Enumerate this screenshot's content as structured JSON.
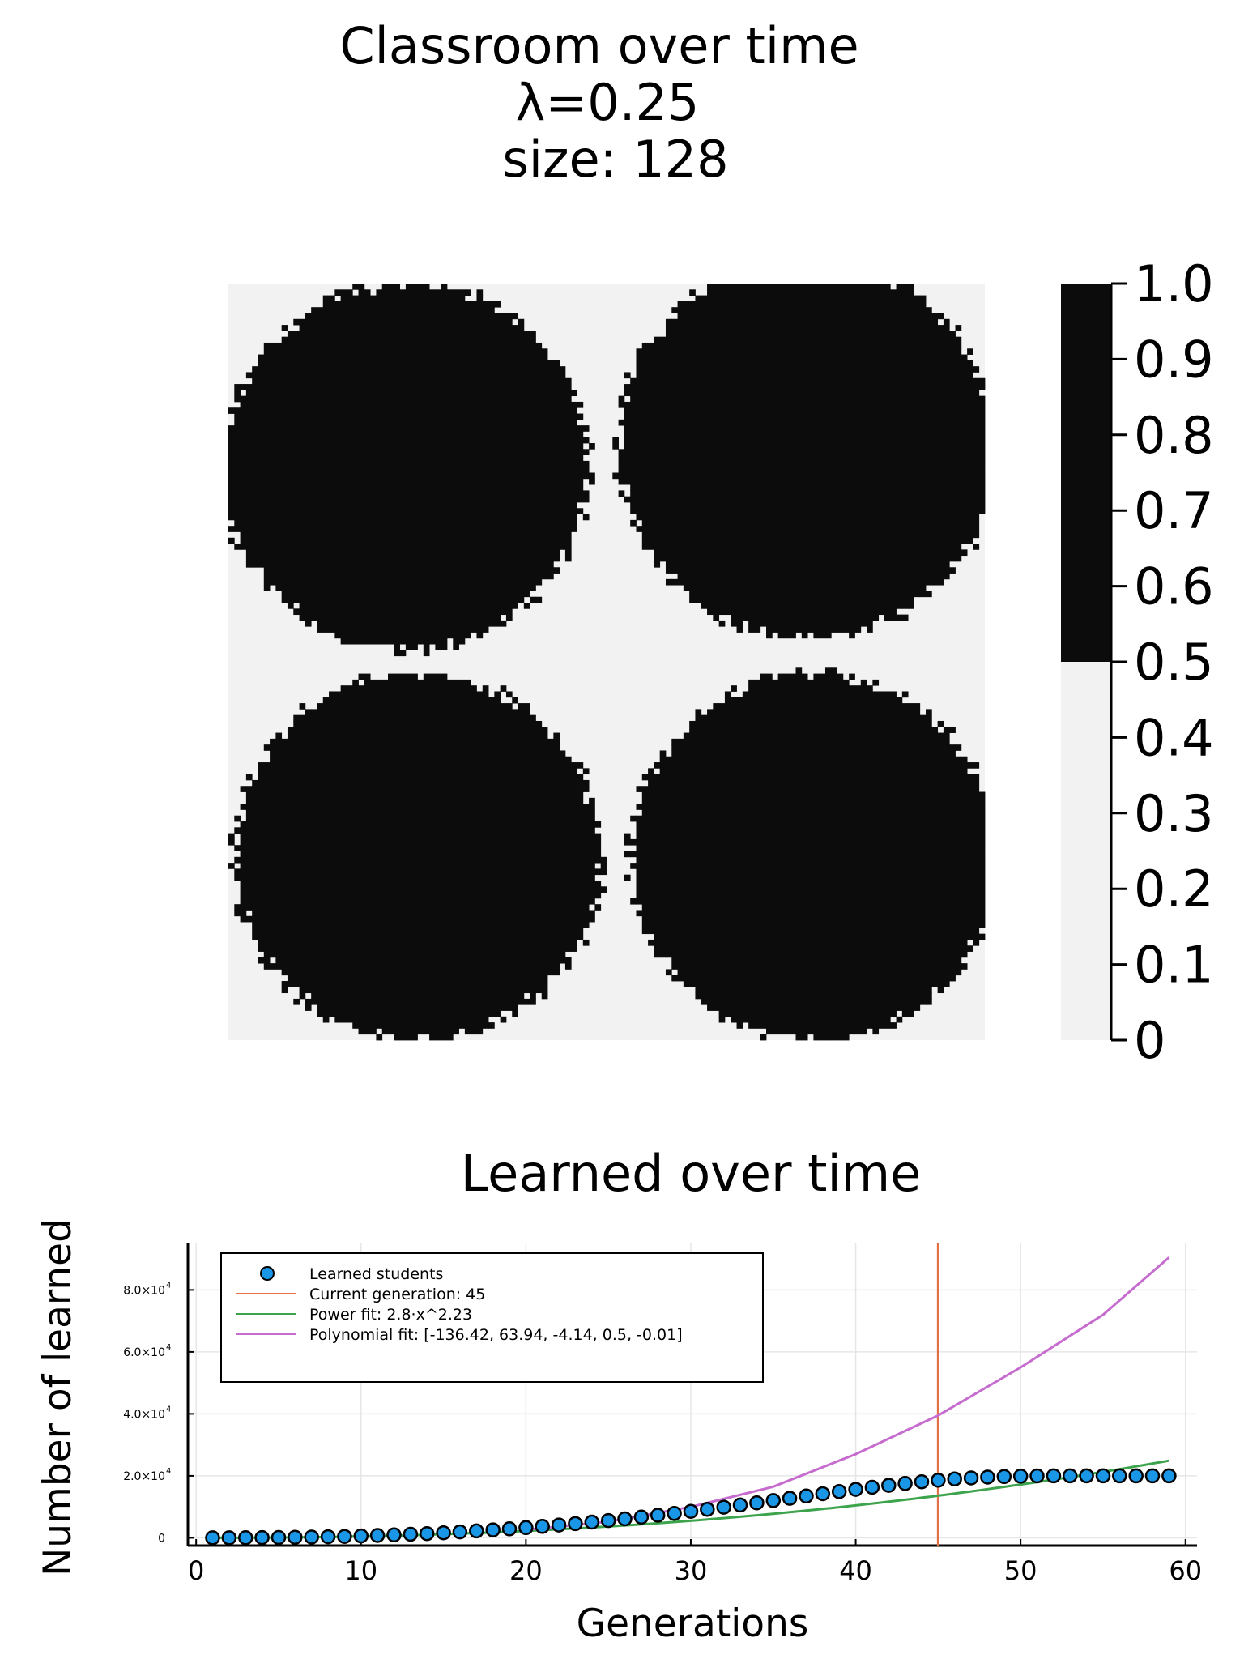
{
  "chart_data": [
    {
      "type": "heatmap",
      "title": "Classroom over time",
      "subtitle_lines": [
        "λ=0.25",
        "size: 128"
      ],
      "grid_size": 128,
      "threshold": 0.25,
      "colorbar": {
        "ticks": [
          "1.0",
          "0.9",
          "0.8",
          "0.7",
          "0.6",
          "0.5",
          "0.4",
          "0.3",
          "0.2",
          "0.1",
          "0"
        ],
        "range": [
          0,
          1
        ],
        "split_value": 0.5,
        "low_color": "#f2f2f2",
        "high_color": "#0c0c0c"
      },
      "blobs": [
        {
          "name": "top-left",
          "cx": 30,
          "cy": 31,
          "r": 31
        },
        {
          "name": "top-right",
          "cx": 98,
          "cy": 28,
          "r": 32
        },
        {
          "name": "bottom-left",
          "cx": 32,
          "cy": 97,
          "r": 31
        },
        {
          "name": "bottom-right",
          "cx": 99,
          "cy": 97,
          "r": 31
        }
      ]
    },
    {
      "type": "scatter",
      "title": "Learned over time",
      "xlabel": "Generations",
      "ylabel": "Number of learned",
      "xlim": [
        -0.5,
        60.7
      ],
      "ylim": [
        -2500,
        95000
      ],
      "xticks": [
        0,
        10,
        20,
        30,
        40,
        50,
        60
      ],
      "yticks": [
        {
          "value": 0,
          "label": "0"
        },
        {
          "value": 20000,
          "label": "2.0×10",
          "exp": "4"
        },
        {
          "value": 40000,
          "label": "4.0×10",
          "exp": "4"
        },
        {
          "value": 60000,
          "label": "6.0×10",
          "exp": "4"
        },
        {
          "value": 80000,
          "label": "8.0×10",
          "exp": "4"
        }
      ],
      "grid": true,
      "legend_position": "top-left",
      "series": [
        {
          "name": "Learned students",
          "kind": "scatter",
          "color": "#1a96e6",
          "x": [
            1,
            2,
            3,
            4,
            5,
            6,
            7,
            8,
            9,
            10,
            11,
            12,
            13,
            14,
            15,
            16,
            17,
            18,
            19,
            20,
            21,
            22,
            23,
            24,
            25,
            26,
            27,
            28,
            29,
            30,
            31,
            32,
            33,
            34,
            35,
            36,
            37,
            38,
            39,
            40,
            41,
            42,
            43,
            44,
            45,
            46,
            47,
            48,
            49,
            50,
            51,
            52,
            53,
            54,
            55,
            56,
            57,
            58,
            59
          ],
          "values": [
            5,
            15,
            40,
            75,
            120,
            180,
            250,
            340,
            450,
            600,
            760,
            950,
            1150,
            1380,
            1640,
            1920,
            2230,
            2560,
            2920,
            3300,
            3700,
            4130,
            4590,
            5080,
            5590,
            6130,
            6700,
            7290,
            7910,
            8550,
            9210,
            9890,
            10590,
            11300,
            12030,
            12760,
            13490,
            14220,
            14940,
            15640,
            16320,
            16960,
            17560,
            18110,
            18600,
            19000,
            19330,
            19590,
            19780,
            19900,
            19970,
            20000,
            20000,
            20000,
            20000,
            20000,
            20000,
            20000,
            20000
          ]
        },
        {
          "name": "Current generation: 45",
          "kind": "vline",
          "color": "#e26f46",
          "x": 45
        },
        {
          "name": "Power fit: 2.8·x^2.23",
          "kind": "line",
          "color": "#3da44d",
          "coef": 2.8,
          "exponent": 2.23
        },
        {
          "name": "Polynomial fit: [-136.42, 63.94, -4.14, 0.5, -0.01]",
          "kind": "line",
          "color": "#c56cce",
          "x": [
            20,
            25,
            30,
            35,
            40,
            45,
            50,
            55,
            59
          ],
          "values": [
            2600,
            5200,
            10000,
            16500,
            27000,
            39500,
            55000,
            72000,
            90500
          ]
        }
      ]
    }
  ]
}
